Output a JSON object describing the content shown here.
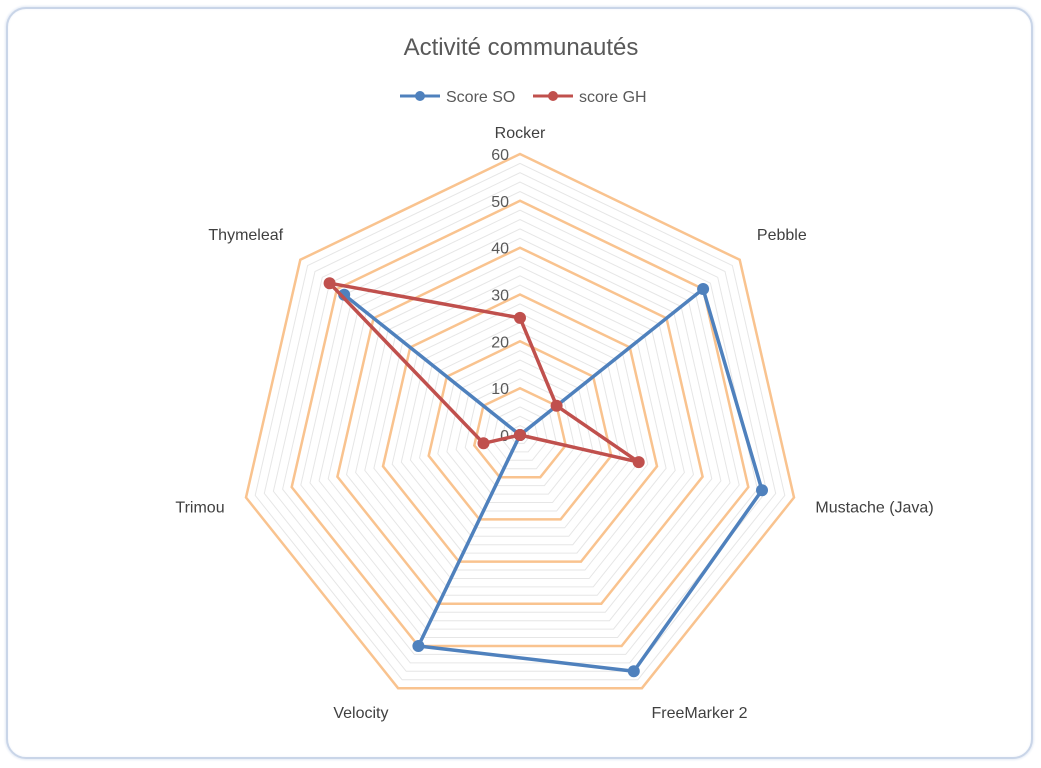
{
  "chart_data": {
    "type": "radar",
    "title": "Activité communautés",
    "categories": [
      "Mustache (Java)",
      "FreeMarker 2",
      "Velocity",
      "Trimou",
      "Thymeleaf",
      "Rocker",
      "Pebble"
    ],
    "series": [
      {
        "name": "Score SO",
        "color": "#4f81bd",
        "values": [
          53,
          56,
          50,
          0,
          48,
          0,
          50
        ]
      },
      {
        "name": "score GH",
        "color": "#c0504d",
        "values": [
          26,
          0,
          0,
          8,
          52,
          25,
          10
        ]
      }
    ],
    "rlim": [
      0,
      60
    ],
    "ticks": [
      "0",
      "10",
      "20",
      "30",
      "40",
      "50",
      "60"
    ],
    "grid": true,
    "legend_position": "top",
    "grid_color": "#f9c38f",
    "minor_grid_color": "#e6e6e6"
  }
}
